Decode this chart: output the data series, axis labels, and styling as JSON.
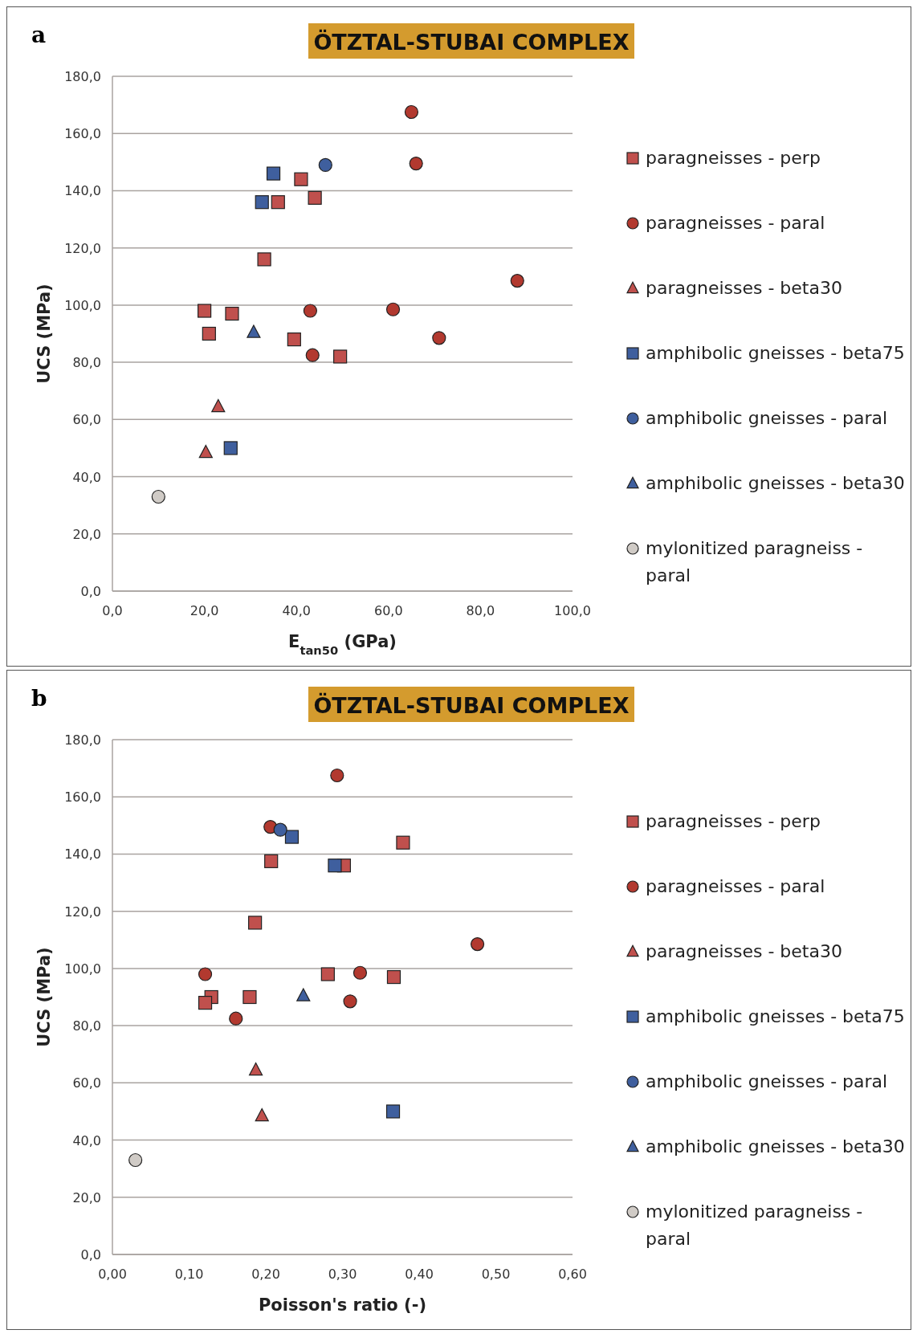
{
  "chart_data": [
    {
      "type": "scatter",
      "title": "ÖTZTAL-STUBAI COMPLEX",
      "xlabel": "E$_{tan50}$ (GPa)",
      "ylabel": "UCS (MPa)",
      "annotations": [
        "a"
      ],
      "xlim": [
        0,
        100
      ],
      "xticks": [
        {
          "value": 0,
          "label": "0,0"
        },
        {
          "value": 20,
          "label": "20,0"
        },
        {
          "value": 40,
          "label": "40,0"
        },
        {
          "value": 60,
          "label": "60,0"
        },
        {
          "value": 80,
          "label": "80,0"
        },
        {
          "value": 100,
          "label": "100,0"
        }
      ],
      "ylim": [
        0,
        180
      ],
      "yticks": [
        {
          "value": 0,
          "label": "0,0"
        },
        {
          "value": 20,
          "label": "20,0"
        },
        {
          "value": 40,
          "label": "40,0"
        },
        {
          "value": 60,
          "label": "60,0"
        },
        {
          "value": 80,
          "label": "80,0"
        },
        {
          "value": 100,
          "label": "100,0"
        },
        {
          "value": 120,
          "label": "120,0"
        },
        {
          "value": 140,
          "label": "140,0"
        },
        {
          "value": 160,
          "label": "160,0"
        },
        {
          "value": 180,
          "label": "180,0"
        }
      ],
      "grid": "y",
      "legend": "right",
      "series": [
        {
          "name": "paragneisses - perp",
          "color": "#c0504d",
          "marker": "square",
          "x": [
            20,
            21,
            26,
            33,
            36,
            41,
            44,
            39.5,
            49.5
          ],
          "values": [
            98,
            90,
            97,
            116,
            136,
            144,
            137.5,
            88,
            82
          ]
        },
        {
          "name": "paragneisses - paral",
          "color": "#b2392f",
          "marker": "circle",
          "x": [
            65,
            66,
            43,
            43.5,
            61,
            71,
            88
          ],
          "values": [
            167.5,
            149.5,
            98,
            82.5,
            98.5,
            88.5,
            108.5
          ]
        },
        {
          "name": "paragneisses - beta30",
          "color": "#c0504d",
          "marker": "triangle",
          "x": [
            23,
            20.3
          ],
          "values": [
            64.5,
            48.5
          ]
        },
        {
          "name": "amphibolic gneisses - beta75",
          "color": "#3f5f9e",
          "marker": "square",
          "x": [
            35,
            32.5,
            25.7
          ],
          "values": [
            146,
            136,
            50
          ]
        },
        {
          "name": "amphibolic gneisses - paral",
          "color": "#3f5f9e",
          "marker": "circle",
          "x": [
            46.3
          ],
          "values": [
            149
          ]
        },
        {
          "name": "amphibolic gneisses - beta30",
          "color": "#3f5f9e",
          "marker": "triangle",
          "x": [
            30.7
          ],
          "values": [
            90.5
          ]
        },
        {
          "name": "mylonitized paragneiss - paral",
          "color": "#d0cbc6",
          "marker": "circle",
          "x": [
            10
          ],
          "values": [
            33
          ]
        }
      ]
    },
    {
      "type": "scatter",
      "title": "ÖTZTAL-STUBAI COMPLEX",
      "xlabel": "Poisson's ratio (-)",
      "ylabel": "UCS (MPa)",
      "annotations": [
        "b"
      ],
      "xlim": [
        0,
        0.6
      ],
      "xticks": [
        {
          "value": 0,
          "label": "0,00"
        },
        {
          "value": 0.1,
          "label": "0,10"
        },
        {
          "value": 0.2,
          "label": "0,20"
        },
        {
          "value": 0.3,
          "label": "0,30"
        },
        {
          "value": 0.4,
          "label": "0,40"
        },
        {
          "value": 0.5,
          "label": "0,50"
        },
        {
          "value": 0.6,
          "label": "0,60"
        }
      ],
      "ylim": [
        0,
        180
      ],
      "yticks": [
        {
          "value": 0,
          "label": "0,0"
        },
        {
          "value": 20,
          "label": "20,0"
        },
        {
          "value": 40,
          "label": "40,0"
        },
        {
          "value": 60,
          "label": "60,0"
        },
        {
          "value": 80,
          "label": "80,0"
        },
        {
          "value": 100,
          "label": "100,0"
        },
        {
          "value": 120,
          "label": "120,0"
        },
        {
          "value": 140,
          "label": "140,0"
        },
        {
          "value": 160,
          "label": "160,0"
        },
        {
          "value": 180,
          "label": "180,0"
        }
      ],
      "grid": "y",
      "legend": "right",
      "series": [
        {
          "name": "paragneisses - perp",
          "color": "#c0504d",
          "marker": "square",
          "x": [
            0.379,
            0.207,
            0.302,
            0.186,
            0.281,
            0.367,
            0.129,
            0.121,
            0.179
          ],
          "values": [
            144,
            137.5,
            136,
            116,
            98,
            97,
            90,
            88,
            90
          ]
        },
        {
          "name": "paragneisses - paral",
          "color": "#b2392f",
          "marker": "circle",
          "x": [
            0.293,
            0.206,
            0.121,
            0.323,
            0.31,
            0.161,
            0.476
          ],
          "values": [
            167.5,
            149.5,
            98,
            98.5,
            88.5,
            82.5,
            108.5
          ]
        },
        {
          "name": "paragneisses - beta30",
          "color": "#c0504d",
          "marker": "triangle",
          "x": [
            0.187,
            0.195
          ],
          "values": [
            64.5,
            48.5
          ]
        },
        {
          "name": "amphibolic gneisses - beta75",
          "color": "#3f5f9e",
          "marker": "square",
          "x": [
            0.234,
            0.29,
            0.366
          ],
          "values": [
            146,
            136,
            50
          ]
        },
        {
          "name": "amphibolic gneisses - paral",
          "color": "#3f5f9e",
          "marker": "circle",
          "x": [
            0.219
          ],
          "values": [
            148.5
          ]
        },
        {
          "name": "amphibolic gneisses - beta30",
          "color": "#3f5f9e",
          "marker": "triangle",
          "x": [
            0.249
          ],
          "values": [
            90.5
          ]
        },
        {
          "name": "mylonitized paragneiss - paral",
          "color": "#d0cbc6",
          "marker": "circle",
          "x": [
            0.03
          ],
          "values": [
            33
          ]
        }
      ]
    }
  ]
}
